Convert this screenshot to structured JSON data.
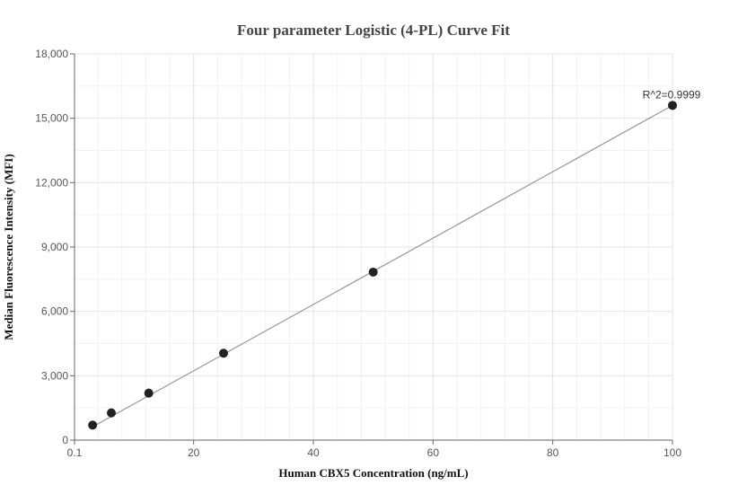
{
  "chart_data": {
    "type": "scatter",
    "title": "Four parameter Logistic (4-PL) Curve Fit",
    "xlabel": "Human CBX5 Concentration (ng/mL)",
    "ylabel": "Median Fluorescence Intensity (MFI)",
    "xlim": [
      0.1,
      100
    ],
    "ylim": [
      0,
      18000
    ],
    "x_ticks": [
      0.1,
      20,
      40,
      60,
      80,
      100
    ],
    "x_tick_labels": [
      "0.1",
      "20",
      "40",
      "60",
      "80",
      "100"
    ],
    "y_ticks": [
      0,
      3000,
      6000,
      9000,
      12000,
      15000,
      18000
    ],
    "y_tick_labels": [
      "0",
      "3,000",
      "6,000",
      "9,000",
      "12,000",
      "15,000",
      "18,000"
    ],
    "grid": true,
    "series": [
      {
        "points": [
          {
            "x": 3.125,
            "y": 700
          },
          {
            "x": 6.25,
            "y": 1270
          },
          {
            "x": 12.5,
            "y": 2190
          },
          {
            "x": 25,
            "y": 4050
          },
          {
            "x": 50,
            "y": 7830
          },
          {
            "x": 100,
            "y": 15600
          }
        ],
        "color": "#222222"
      }
    ],
    "fit_line": {
      "x": [
        3.125,
        100
      ],
      "y": [
        620,
        15600
      ],
      "color": "#888888"
    },
    "annotation": {
      "text": "R^2=0.9999",
      "x": 100,
      "y": 15600
    }
  }
}
